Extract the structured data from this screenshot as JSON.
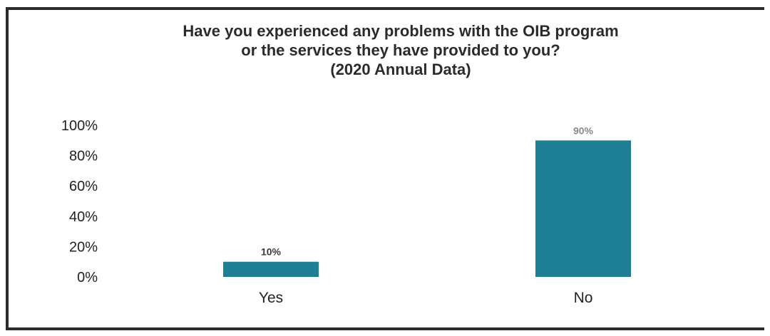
{
  "chart_data": {
    "type": "bar",
    "title_lines": [
      "Have you experienced any problems with the OIB program",
      "or the services they have provided to you?",
      "(2020 Annual Data)"
    ],
    "categories": [
      "Yes",
      "No"
    ],
    "values": [
      10,
      90
    ],
    "data_labels": [
      "10%",
      "90%"
    ],
    "y_ticks": [
      "0%",
      "20%",
      "40%",
      "60%",
      "80%",
      "100%"
    ],
    "ylim": [
      0,
      100
    ],
    "grid": false,
    "legend": "none",
    "bar_color": "#1f7f95",
    "label_colors": [
      "#3a3a3a",
      "#8a8a8a"
    ]
  }
}
